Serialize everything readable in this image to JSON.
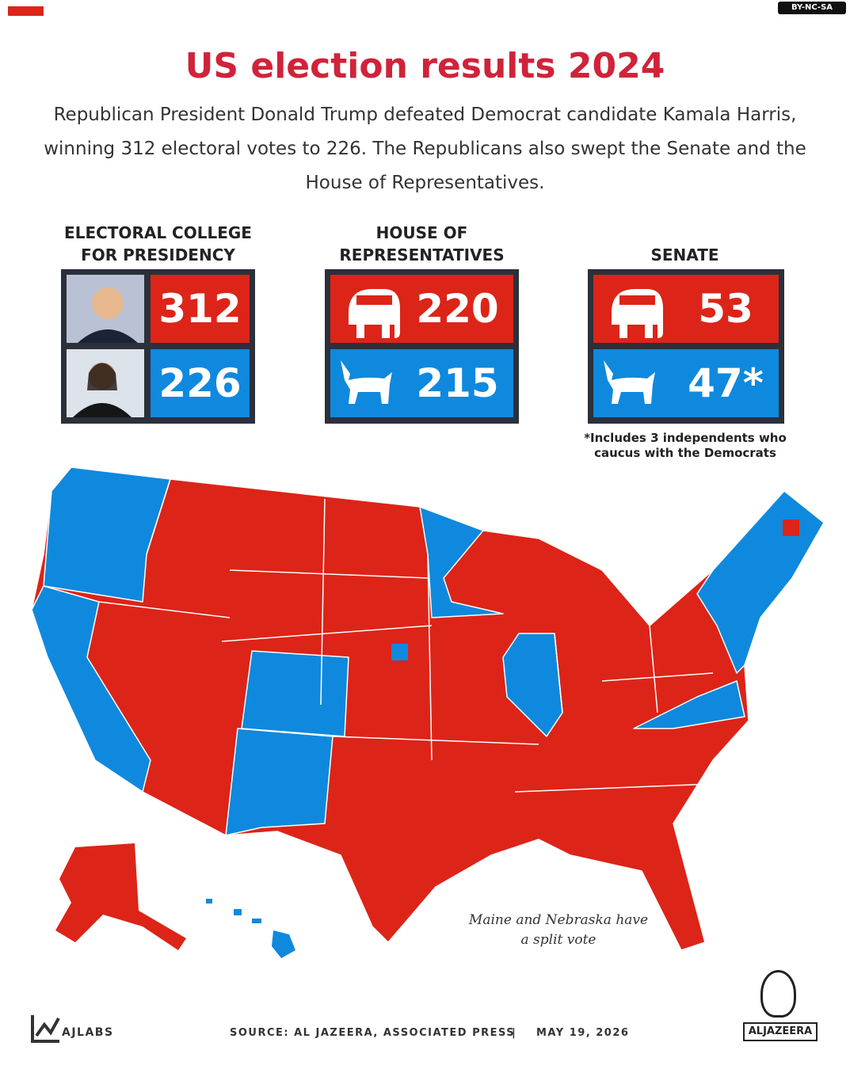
{
  "license": "BY-NC-SA",
  "header": {
    "title": "US election results 2024",
    "subtitle": "Republican President Donald Trump defeated Democrat candidate Kamala Harris, winning 312 electoral votes to 226. The Republicans also swept the Senate and the House of Representatives."
  },
  "panels": [
    {
      "title": "ELECTORAL COLLEGE FOR PRESIDENCY",
      "republican": "312",
      "democrat": "226"
    },
    {
      "title": "HOUSE OF REPRESENTATIVES",
      "republican": "220",
      "democrat": "215"
    },
    {
      "title": "SENATE",
      "republican": "53",
      "democrat": "47*"
    }
  ],
  "footnote": "*Includes 3 independents who caucus with the Democrats",
  "map_note": "Maine and Nebraska have a split vote",
  "footer": {
    "brand": "AJLABS",
    "source": "SOURCE:  AL JAZEERA, ASSOCIATED PRESS",
    "separator": "|",
    "date": "MAY 19, 2026",
    "logo": "ALJAZEERA"
  }
}
